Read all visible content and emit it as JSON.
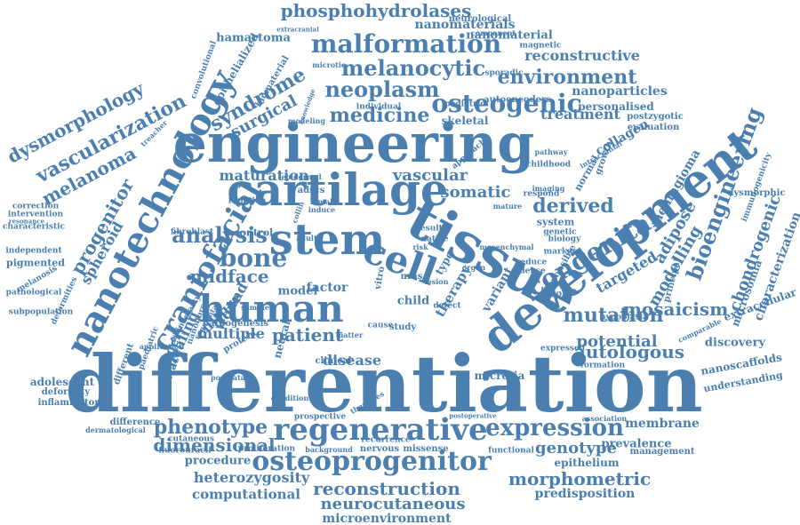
{
  "colors": {
    "word": "#4a7fb0",
    "background": "#ffffff"
  },
  "words": [
    "differentiation",
    "engineering",
    "cartilage",
    "tissue",
    "development",
    "nanotechnology",
    "stem",
    "cell",
    "human",
    "craniofacial",
    "malformation",
    "regenerative",
    "osteoprogenitor",
    "expression",
    "phosphohydrolases",
    "melanocytic",
    "osteogenic",
    "neoplasm",
    "medicine",
    "environment",
    "reconstructive",
    "vascularization",
    "dysmorphology",
    "melanoma",
    "syndrome",
    "surgical",
    "analysis",
    "maturation",
    "bone",
    "derived",
    "congenital",
    "bioengineering",
    "vascular",
    "somatic",
    "midface",
    "patient",
    "mutation",
    "potential",
    "autologous",
    "mosaicism",
    "phenotype",
    "genotype",
    "dimensional",
    "morphometric",
    "reconstruction",
    "neurocutaneous",
    "heterozygosity",
    "computational",
    "microenvironment",
    "predisposition",
    "disease",
    "multiple",
    "chondrogenic",
    "modelling",
    "adipose",
    "targeted",
    "treatment",
    "nanoparticles",
    "progenitor",
    "spheroid",
    "wound",
    "culture",
    "healing",
    "surgery",
    "factor",
    "collagen",
    "nanomaterials",
    "nanomaterial",
    "hamartoma",
    "neurological",
    "extracellular",
    "discovery",
    "nanoscaffolds",
    "understanding",
    "prevalence",
    "epithelium",
    "management",
    "membrane",
    "adolescent",
    "deformity",
    "inflammatory",
    "difference",
    "dermatological",
    "procedure",
    "fluorouracil",
    "cutaneous",
    "nervous",
    "missense",
    "functional",
    "characterization",
    "microsomia",
    "dysmorphic",
    "pigmented",
    "melanosis",
    "pathological",
    "subpopulation",
    "independent",
    "characteristic",
    "intervention",
    "correction",
    "resonance",
    "personalised",
    "postzygotic",
    "evaluation",
    "sporadic",
    "magnetic",
    "component",
    "extracranial",
    "epithelialized",
    "biomaterial",
    "convolutional",
    "microtic",
    "pathogenesis",
    "postnatal",
    "protein",
    "sample",
    "control",
    "system",
    "child",
    "variant",
    "therapy",
    "type",
    "microtia",
    "clinical",
    "neural",
    "cause",
    "study",
    "matter",
    "formation",
    "expressed",
    "genetic",
    "marker",
    "biology",
    "normal",
    "growth",
    "meningioma",
    "hypoplasia",
    "comparable",
    "immunogenicity",
    "principal",
    "nanofibre",
    "paediatric",
    "rhinoplasty",
    "application",
    "different",
    "adult",
    "skeletal",
    "pediatric",
    "outcome",
    "responsible",
    "childhood",
    "imaging",
    "pathway",
    "intracranial",
    "fibroblast",
    "function",
    "adscs",
    "model",
    "surface",
    "nras",
    "vitro",
    "recurrence",
    "prospective",
    "condition",
    "therapies",
    "postoperative",
    "association",
    "proliferation",
    "background",
    "approach",
    "respond",
    "dense",
    "reduce",
    "defect",
    "autoencoders",
    "individual",
    "modeling",
    "knowledge",
    "treacher",
    "deformities",
    "segmental",
    "epidermal",
    "female",
    "induce",
    "mature",
    "collin",
    "result",
    "native",
    "risk",
    "mesenchymal",
    "organ",
    "lesion"
  ]
}
